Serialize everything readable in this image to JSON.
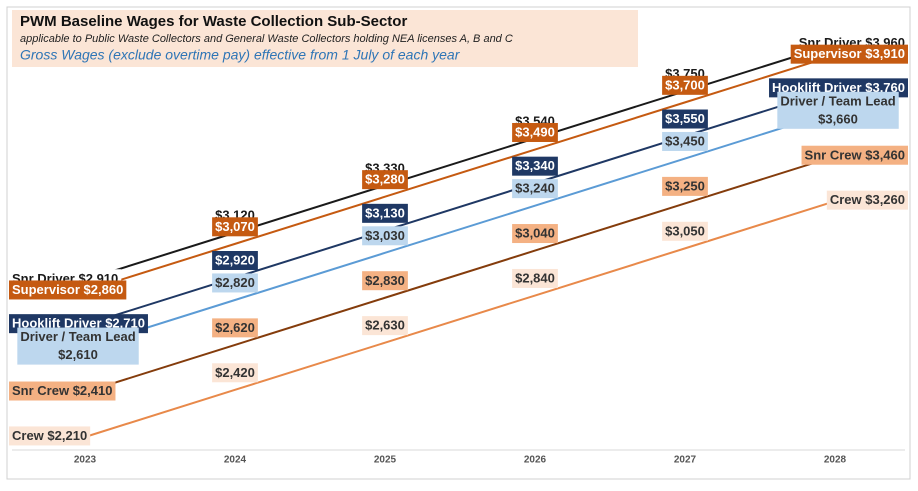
{
  "chart_data": {
    "type": "line",
    "title": "PWM Baseline Wages for Waste Collection Sub-Sector",
    "subtitle": "applicable to Public Waste Collectors and General Waste Collectors holding NEA licenses A, B and C",
    "note": "Gross Wages (exclude overtime pay) effective from 1 July of each year",
    "categories": [
      "2023",
      "2024",
      "2025",
      "2026",
      "2027",
      "2028"
    ],
    "series": [
      {
        "name": "Snr Driver",
        "color": "#1a1a1a",
        "label_fill": "#ffffff",
        "label_text_color": "#1a1a1a",
        "label_wrap": false,
        "values": [
          2910,
          3120,
          3330,
          3540,
          3750,
          3960
        ],
        "value_labels": [
          "$2,910",
          "$3,120",
          "$3,330",
          "$3,540",
          "$3,750",
          "$3,960"
        ]
      },
      {
        "name": "Supervisor",
        "color": "#c55a11",
        "label_fill": "#c55a11",
        "label_text_color": "#ffffff",
        "label_wrap": false,
        "values": [
          2860,
          3070,
          3280,
          3490,
          3700,
          3910
        ],
        "value_labels": [
          "$2,860",
          "$3,070",
          "$3,280",
          "$3,490",
          "$3,700",
          "$3,910"
        ]
      },
      {
        "name": "Hooklift Driver",
        "color": "#1f3864",
        "label_fill": "#1f3864",
        "label_text_color": "#ffffff",
        "label_wrap": false,
        "values": [
          2710,
          2920,
          3130,
          3340,
          3550,
          3760
        ],
        "value_labels": [
          "$2,710",
          "$2,920",
          "$3,130",
          "$3,340",
          "$3,550",
          "$3,760"
        ]
      },
      {
        "name": "Driver / Team Lead",
        "color": "#5b9bd5",
        "label_fill": "#bdd7ee",
        "label_text_color": "#333333",
        "label_wrap": true,
        "values": [
          2610,
          2820,
          3030,
          3240,
          3450,
          3660
        ],
        "value_labels": [
          "$2,610",
          "$2,820",
          "$3,030",
          "$3,240",
          "$3,450",
          "$3,660"
        ]
      },
      {
        "name": "Snr Crew",
        "color": "#843c0c",
        "label_fill": "#f4b183",
        "label_text_color": "#333333",
        "label_wrap": false,
        "values": [
          2410,
          2620,
          2830,
          3040,
          3250,
          3460
        ],
        "value_labels": [
          "$2,410",
          "$2,620",
          "$2,830",
          "$3,040",
          "$3,250",
          "$3,460"
        ]
      },
      {
        "name": "Crew",
        "color": "#e8894a",
        "label_fill": "#fbe5d6",
        "label_text_color": "#333333",
        "label_wrap": false,
        "values": [
          2210,
          2420,
          2630,
          2840,
          3050,
          3260
        ],
        "value_labels": [
          "$2,210",
          "$2,420",
          "$2,630",
          "$2,840",
          "$3,050",
          "$3,260"
        ]
      }
    ]
  }
}
